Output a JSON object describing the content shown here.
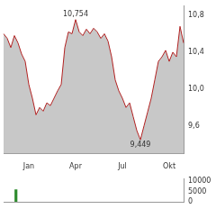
{
  "chart_data": [
    {
      "type": "line",
      "categories": [
        null,
        null,
        null,
        null,
        null,
        null,
        null,
        "Jan",
        null,
        null,
        null,
        null,
        null,
        null,
        null,
        null,
        null,
        null,
        null,
        null,
        "Apr",
        null,
        null,
        null,
        null,
        null,
        null,
        null,
        null,
        null,
        null,
        null,
        null,
        "Jul",
        null,
        null,
        null,
        null,
        null,
        null,
        null,
        null,
        null,
        null,
        null,
        null,
        "Okt",
        null,
        null,
        null,
        null
      ],
      "values": [
        10.6,
        10.55,
        10.45,
        10.58,
        10.5,
        10.38,
        10.3,
        10.05,
        9.9,
        9.72,
        9.8,
        9.76,
        9.85,
        9.82,
        9.9,
        9.98,
        10.05,
        10.45,
        10.62,
        10.6,
        10.754,
        10.62,
        10.58,
        10.65,
        10.6,
        10.66,
        10.62,
        10.55,
        10.6,
        10.52,
        10.35,
        10.1,
        9.98,
        9.9,
        9.8,
        9.85,
        9.7,
        9.55,
        9.449,
        9.6,
        9.75,
        9.9,
        10.1,
        10.3,
        10.35,
        10.42,
        10.3,
        10.4,
        10.35,
        10.68,
        10.5
      ],
      "color": "#b22222",
      "ylim": [
        9.3,
        10.9
      ],
      "yticks": [
        {
          "value": 9.6,
          "label": "9,6"
        },
        {
          "value": 10.0,
          "label": "10,0"
        },
        {
          "value": 10.4,
          "label": "10,4"
        },
        {
          "value": 10.8,
          "label": "10,8"
        }
      ],
      "annotations": [
        {
          "text": "10,754",
          "value": 10.754
        },
        {
          "text": "9,449",
          "value": 9.449
        }
      ],
      "grid": false
    },
    {
      "type": "bar",
      "categories": [
        null,
        null,
        null,
        null,
        null,
        null,
        null,
        null,
        null,
        null,
        null,
        null,
        null,
        null,
        null,
        null,
        null,
        null,
        null,
        null,
        null,
        null,
        null,
        null,
        null,
        null,
        null,
        null,
        null,
        null,
        null,
        null,
        null,
        null,
        null,
        null,
        null,
        null,
        null,
        null,
        null,
        null,
        null,
        null,
        null,
        null,
        null,
        null,
        null,
        null,
        null
      ],
      "values": [
        0,
        0,
        0,
        6000,
        0,
        0,
        0,
        0,
        0,
        0,
        0,
        0,
        0,
        0,
        0,
        0,
        0,
        0,
        0,
        0,
        0,
        0,
        0,
        0,
        0,
        0,
        0,
        0,
        0,
        0,
        0,
        0,
        0,
        0,
        0,
        0,
        0,
        0,
        0,
        0,
        0,
        0,
        0,
        0,
        0,
        0,
        0,
        0,
        0,
        0,
        0
      ],
      "color": "#2e8b2e",
      "ylim": [
        0,
        11000
      ],
      "yticks": [
        0,
        5000,
        10000
      ],
      "grid": false,
      "tick_labels": "y"
    }
  ]
}
